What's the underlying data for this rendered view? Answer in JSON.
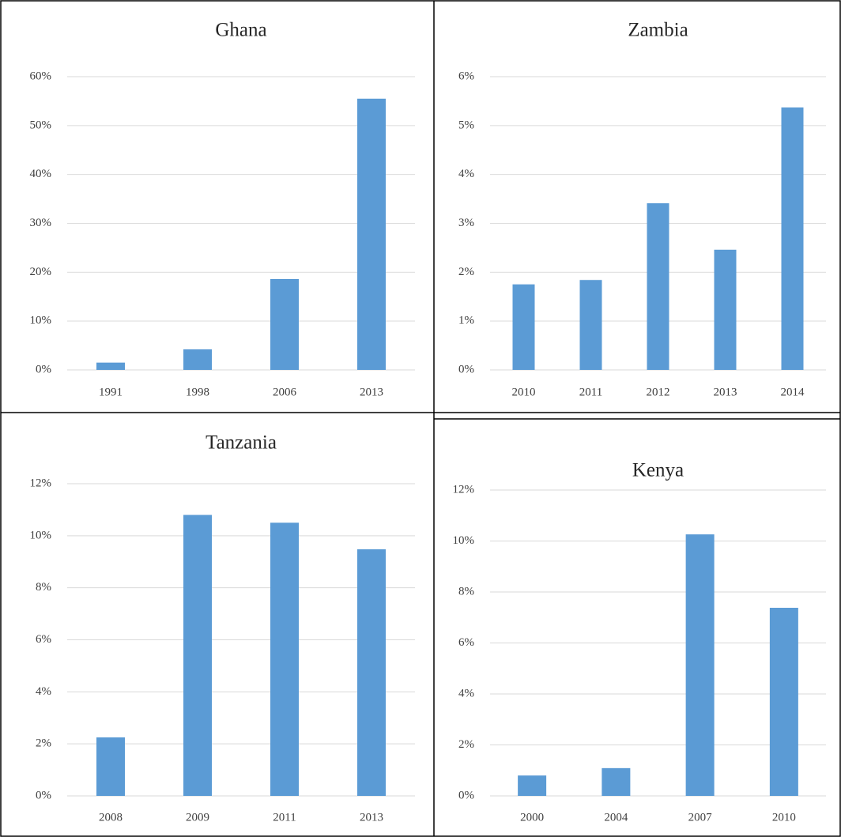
{
  "chart_data": [
    {
      "type": "bar",
      "title": "Ghana",
      "categories": [
        "1991",
        "1998",
        "2006",
        "2013"
      ],
      "values": [
        1.5,
        4.2,
        18.6,
        55.5
      ],
      "color": "#5b9bd5",
      "ylim": [
        0,
        60
      ],
      "yticks": [
        {
          "value": 0,
          "label": "0%"
        },
        {
          "value": 10,
          "label": "10%"
        },
        {
          "value": 20,
          "label": "20%"
        },
        {
          "value": 30,
          "label": "30%"
        },
        {
          "value": 40,
          "label": "40%"
        },
        {
          "value": 50,
          "label": "50%"
        },
        {
          "value": 60,
          "label": "60%"
        }
      ],
      "grid": true
    },
    {
      "type": "bar",
      "title": "Zambia",
      "categories": [
        "2010",
        "2011",
        "2012",
        "2013",
        "2014"
      ],
      "values": [
        1.75,
        1.84,
        3.41,
        2.46,
        5.37
      ],
      "color": "#5b9bd5",
      "ylim": [
        0,
        6
      ],
      "yticks": [
        {
          "value": 0,
          "label": "0%"
        },
        {
          "value": 1,
          "label": "1%"
        },
        {
          "value": 2,
          "label": "2%"
        },
        {
          "value": 3,
          "label": "3%"
        },
        {
          "value": 4,
          "label": "4%"
        },
        {
          "value": 5,
          "label": "5%"
        },
        {
          "value": 6,
          "label": "6%"
        }
      ],
      "grid": true
    },
    {
      "type": "bar",
      "title": "Tanzania",
      "categories": [
        "2008",
        "2009",
        "2011",
        "2013"
      ],
      "values": [
        2.25,
        10.8,
        10.5,
        9.48
      ],
      "color": "#5b9bd5",
      "ylim": [
        0,
        12
      ],
      "yticks": [
        {
          "value": 0,
          "label": "0%"
        },
        {
          "value": 2,
          "label": "2%"
        },
        {
          "value": 4,
          "label": "4%"
        },
        {
          "value": 6,
          "label": "6%"
        },
        {
          "value": 8,
          "label": "8%"
        },
        {
          "value": 10,
          "label": "10%"
        },
        {
          "value": 12,
          "label": "12%"
        }
      ],
      "grid": true
    },
    {
      "type": "bar",
      "title": "Kenya",
      "categories": [
        "2000",
        "2004",
        "2007",
        "2010"
      ],
      "values": [
        0.8,
        1.09,
        10.26,
        7.38
      ],
      "color": "#5b9bd5",
      "ylim": [
        0,
        12
      ],
      "yticks": [
        {
          "value": 0,
          "label": "0%"
        },
        {
          "value": 2,
          "label": "2%"
        },
        {
          "value": 4,
          "label": "4%"
        },
        {
          "value": 6,
          "label": "6%"
        },
        {
          "value": 8,
          "label": "8%"
        },
        {
          "value": 10,
          "label": "10%"
        },
        {
          "value": 12,
          "label": "12%"
        }
      ],
      "grid": true
    }
  ]
}
